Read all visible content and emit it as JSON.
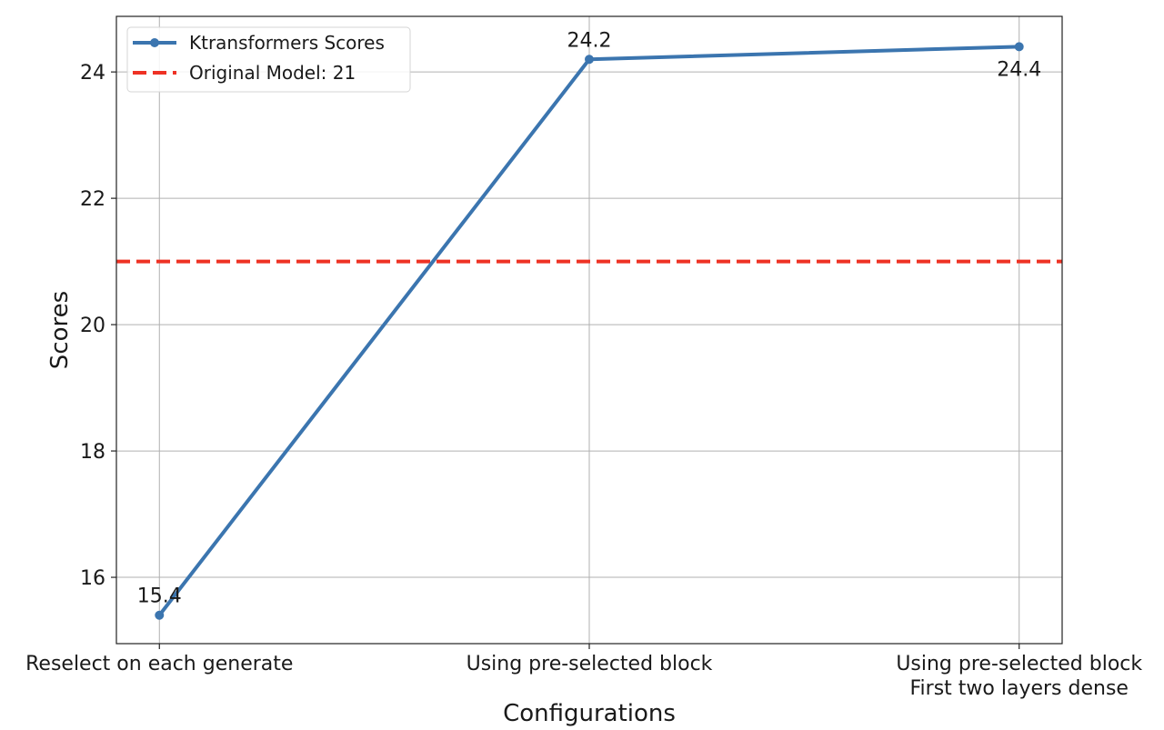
{
  "chart_data": {
    "type": "line",
    "title": "",
    "xlabel": "Configurations",
    "ylabel": "Scores",
    "categories": [
      "Reselect on each generate",
      "Using pre-selected block",
      "Using pre-selected block\nFirst two layers dense"
    ],
    "series": [
      {
        "name": "Ktransformers Scores",
        "values": [
          15.4,
          24.2,
          24.4
        ],
        "color": "#3b75af",
        "data_labels": [
          "15.4",
          "24.2",
          "24.4"
        ]
      }
    ],
    "reference_lines": [
      {
        "name": "Original Model: 21",
        "value": 21,
        "color": "#ee3224",
        "style": "dashed"
      }
    ],
    "ylim": [
      14.95,
      24.88
    ],
    "xlim": [
      -0.1,
      2.1
    ],
    "yticks": [
      16,
      18,
      20,
      22,
      24
    ],
    "grid": true,
    "legend": "top-left"
  }
}
